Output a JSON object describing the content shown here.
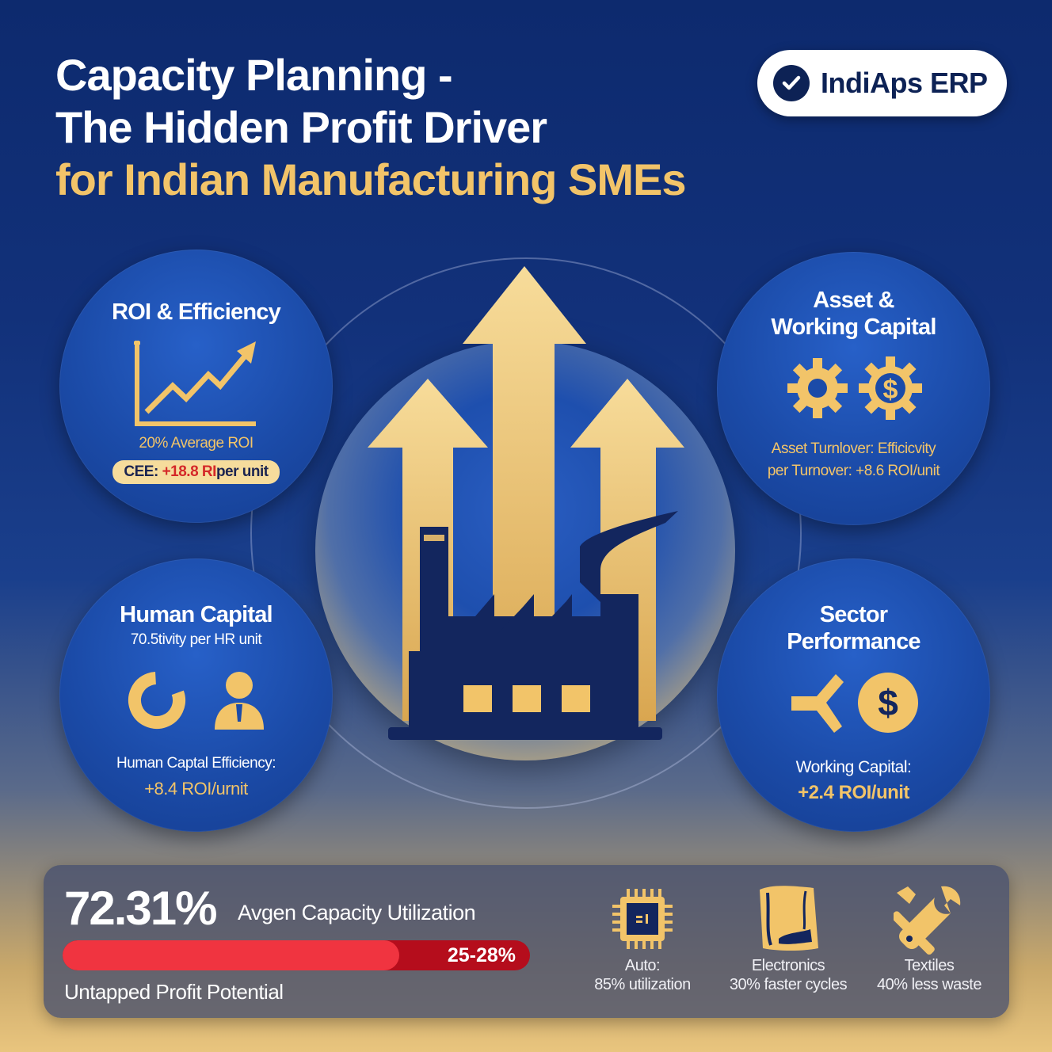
{
  "title": {
    "line1": "Capacity Planning -",
    "line2": "The Hidden Profit Driver",
    "line3": "for Indian Manufacturing SMEs"
  },
  "brand": {
    "name": "IndiAps ERP",
    "icon": "check-circle-icon"
  },
  "colors": {
    "accent_gold": "#f2c469",
    "navy": "#0d2255",
    "bar_red": "#f03440"
  },
  "roi": {
    "title": "ROI & Efficiency",
    "subtitle": "20% Average ROI",
    "pill_prefix": "CEE: ",
    "pill_value": "+18.8 RI",
    "pill_suffix": "per unit",
    "icon": "growth-chart-icon"
  },
  "asset": {
    "title_line1": "Asset &",
    "title_line2": "Working Capital",
    "line1": "Asset Turnlover: Efficicvity",
    "line2": "per Turnover: +8.6 ROI/unit",
    "icons": [
      "gear-icon",
      "dollar-gear-icon"
    ]
  },
  "human": {
    "title": "Human Capital",
    "subtitle": "70.5tivity per HR unit",
    "line1": "Human Captal Efficiency:",
    "line2": "+8.4 ROI/urnit",
    "icons": [
      "donut-chart-icon",
      "person-icon"
    ]
  },
  "sector_perf": {
    "title_line1": "Sector",
    "title_line2": "Performance",
    "line1": "Working Capital:",
    "line2": "+2.4 ROI/unit",
    "icons": [
      "arrows-icon",
      "dollar-coin-icon"
    ]
  },
  "capacity": {
    "value": "72.31%",
    "label": "Avgen Capacity Utilization",
    "bar_fill_fraction": 0.72,
    "range": "25-28%",
    "footer": "Untapped Profit Potential"
  },
  "sectors": [
    {
      "name": "Auto:",
      "stat": "85% utilization",
      "icon": "chip-icon"
    },
    {
      "name": "Electronics",
      "stat": "30% faster cycles",
      "icon": "fabric-roll-icon"
    },
    {
      "name": "Textiles",
      "stat": "40% less waste",
      "icon": "tools-icon"
    }
  ]
}
